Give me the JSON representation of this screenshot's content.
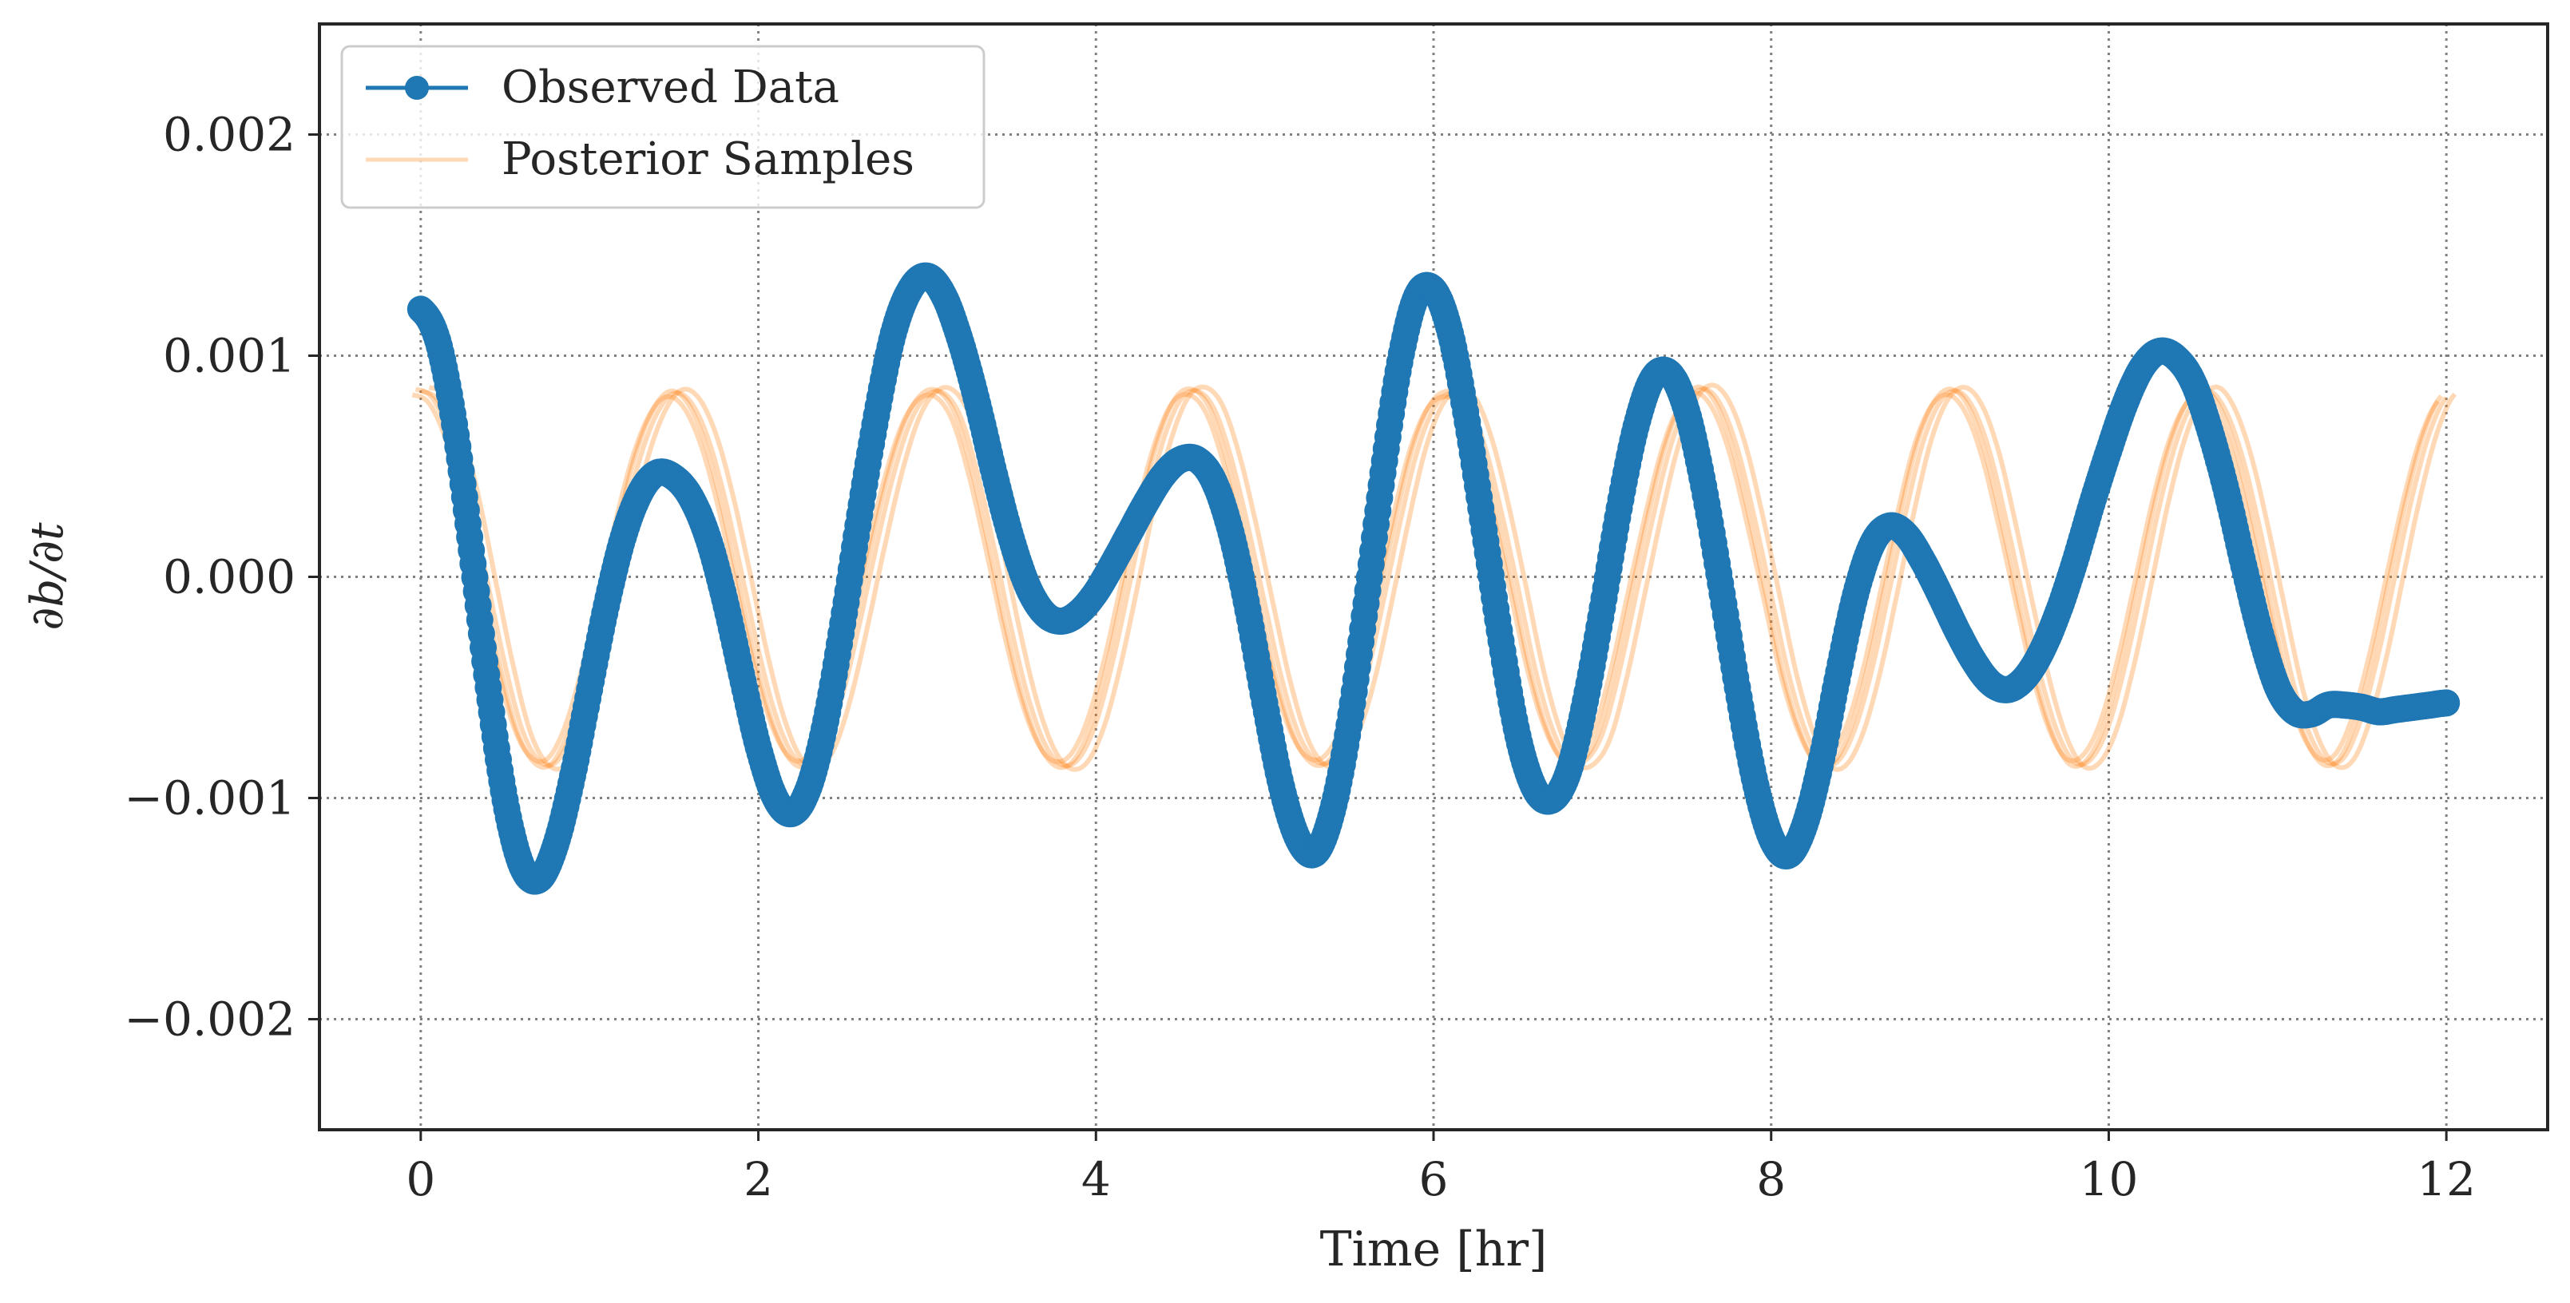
{
  "chart_data": {
    "type": "line",
    "title": "",
    "xlabel": "Time [hr]",
    "ylabel": "∂b/∂t",
    "xlim": [
      -0.6,
      12.6
    ],
    "ylim": [
      -0.0025,
      0.0025
    ],
    "xticks": [
      0,
      2,
      4,
      6,
      8,
      10,
      12
    ],
    "xtick_labels": [
      "0",
      "2",
      "4",
      "6",
      "8",
      "10",
      "12"
    ],
    "yticks": [
      -0.002,
      -0.001,
      0.0,
      0.001,
      0.002
    ],
    "ytick_labels": [
      "−0.002",
      "−0.001",
      "0.000",
      "0.001",
      "0.002"
    ],
    "grid": true,
    "legend_position": "top-left",
    "series": [
      {
        "name": "Observed Data",
        "color": "#1f77b4",
        "marker": "circle",
        "x": [
          0.0,
          0.1,
          0.2,
          0.3,
          0.4,
          0.5,
          0.6,
          0.7,
          0.8,
          0.9,
          1.0,
          1.1,
          1.2,
          1.3,
          1.4,
          1.5,
          1.6,
          1.7,
          1.8,
          1.9,
          2.0,
          2.1,
          2.2,
          2.3,
          2.4,
          2.5,
          2.6,
          2.7,
          2.8,
          2.9,
          3.0,
          3.1,
          3.2,
          3.3,
          3.4,
          3.5,
          3.6,
          3.7,
          3.8,
          3.9,
          4.0,
          4.1,
          4.2,
          4.3,
          4.4,
          4.5,
          4.6,
          4.7,
          4.8,
          4.9,
          5.0,
          5.1,
          5.2,
          5.3,
          5.4,
          5.5,
          5.6,
          5.7,
          5.8,
          5.9,
          6.0,
          6.1,
          6.2,
          6.3,
          6.4,
          6.5,
          6.6,
          6.7,
          6.8,
          6.9,
          7.0,
          7.1,
          7.2,
          7.3,
          7.4,
          7.5,
          7.6,
          7.7,
          7.8,
          7.9,
          8.0,
          8.1,
          8.2,
          8.3,
          8.4,
          8.5,
          8.6,
          8.7,
          8.8,
          8.9,
          9.0,
          9.1,
          9.2,
          9.3,
          9.4,
          9.5,
          9.6,
          9.7,
          9.8,
          9.9,
          10.0,
          10.1,
          10.2,
          10.3,
          10.4,
          10.5,
          10.6,
          10.7,
          10.8,
          10.9,
          11.0,
          11.1,
          11.2,
          11.3,
          11.4,
          11.5,
          11.6,
          11.7,
          11.8,
          11.9,
          12.0
        ],
        "y": [
          0.00121,
          0.00107,
          0.00069,
          0.00012,
          -0.0005,
          -0.00101,
          -0.00131,
          -0.00137,
          -0.00121,
          -0.0009,
          -0.00051,
          -0.00013,
          0.00018,
          0.00038,
          0.00047,
          0.00045,
          0.00036,
          0.00018,
          -0.0001,
          -0.00044,
          -0.00077,
          -0.001,
          -0.00107,
          -0.00095,
          -0.00065,
          -0.00021,
          0.00028,
          0.00073,
          0.0011,
          0.0013,
          0.00136,
          0.00127,
          0.00106,
          0.00078,
          0.00046,
          0.00017,
          -5e-05,
          -0.00017,
          -0.0002,
          -0.00016,
          -7e-05,
          6e-05,
          0.0002,
          0.00034,
          0.00046,
          0.00053,
          0.00053,
          0.00043,
          0.0002,
          -0.00015,
          -0.00057,
          -0.00095,
          -0.00119,
          -0.00125,
          -0.00106,
          -0.00067,
          -0.00012,
          0.00047,
          0.00097,
          0.00127,
          0.0013,
          0.0011,
          0.0007,
          0.00021,
          -0.00029,
          -0.00072,
          -0.00096,
          -0.00101,
          -0.00088,
          -0.00056,
          -0.00014,
          0.00031,
          0.00068,
          0.0009,
          0.00092,
          0.00075,
          0.00041,
          -3e-05,
          -0.0005,
          -0.00091,
          -0.00118,
          -0.00126,
          -0.00112,
          -0.00082,
          -0.00043,
          -8e-05,
          0.00015,
          0.00023,
          0.00019,
          7e-05,
          -8e-05,
          -0.00024,
          -0.00038,
          -0.00048,
          -0.00051,
          -0.00046,
          -0.00034,
          -0.00016,
          7e-05,
          0.00033,
          0.00057,
          0.00079,
          0.00095,
          0.00102,
          0.00099,
          0.00088,
          0.00066,
          0.00038,
          5e-05,
          -0.00026,
          -0.0005,
          -0.00061,
          -0.00062,
          -0.00058,
          -0.00058,
          -0.00059,
          -0.00061,
          -0.0006,
          -0.00059,
          -0.00058,
          -0.00057
        ]
      },
      {
        "name": "Posterior Samples",
        "color": "#ff7f0e",
        "x": [
          0.0,
          0.1,
          0.2,
          0.3,
          0.4,
          0.5,
          0.6,
          0.7,
          0.8,
          0.9,
          1.0,
          1.1,
          1.2,
          1.3,
          1.4,
          1.5,
          1.6,
          1.7,
          1.8,
          1.9,
          2.0,
          2.1,
          2.2,
          2.3,
          2.4,
          2.5,
          2.6,
          2.7,
          2.8,
          2.9,
          3.0,
          3.1,
          3.2,
          3.3,
          3.4,
          3.5,
          3.6,
          3.7,
          3.8,
          3.9,
          4.0,
          4.1,
          4.2,
          4.3,
          4.4,
          4.5,
          4.6,
          4.7,
          4.8,
          4.9,
          5.0,
          5.1,
          5.2,
          5.3,
          5.4,
          5.5,
          5.6,
          5.7,
          5.8,
          5.9,
          6.0,
          6.1,
          6.2,
          6.3,
          6.4,
          6.5,
          6.6,
          6.7,
          6.8,
          6.9,
          7.0,
          7.1,
          7.2,
          7.3,
          7.4,
          7.5,
          7.6,
          7.7,
          7.8,
          7.9,
          8.0,
          8.1,
          8.2,
          8.3,
          8.4,
          8.5,
          8.6,
          8.7,
          8.8,
          8.9,
          9.0,
          9.1,
          9.2,
          9.3,
          9.4,
          9.5,
          9.6,
          9.7,
          9.8,
          9.9,
          10.0,
          10.1,
          10.2,
          10.3,
          10.4,
          10.5,
          10.6,
          10.7,
          10.8,
          10.9,
          11.0,
          11.1,
          11.2,
          11.3,
          11.4,
          11.5,
          11.6,
          11.7,
          11.8,
          11.9,
          12.0
        ],
        "y": [
          0.00084,
          0.0008,
          0.00063,
          0.00033,
          -4e-05,
          -0.0004,
          -0.00069,
          -0.00083,
          -0.00084,
          -0.0007,
          -0.00044,
          -0.00011,
          0.00024,
          0.00054,
          0.00074,
          0.00083,
          0.00079,
          0.00063,
          0.00036,
          2e-05,
          -0.00033,
          -0.00062,
          -0.0008,
          -0.00085,
          -0.00076,
          -0.00053,
          -0.00021,
          0.00014,
          0.00046,
          0.0007,
          0.00082,
          0.00083,
          0.00072,
          0.00046,
          0.00012,
          -0.00024,
          -0.00055,
          -0.00076,
          -0.00085,
          -0.00082,
          -0.00066,
          -0.00038,
          -3e-05,
          0.00033,
          0.00062,
          0.0008,
          0.00084,
          0.00076,
          0.00054,
          0.00023,
          -0.00012,
          -0.00046,
          -0.00071,
          -0.00083,
          -0.00083,
          -0.0007,
          -0.00046,
          -0.00012,
          0.00024,
          0.00056,
          0.00076,
          0.00083,
          0.00079,
          0.0006,
          0.0003,
          -5e-05,
          -0.00041,
          -0.00068,
          -0.00083,
          -0.00083,
          -0.00071,
          -0.00043,
          -8e-05,
          0.00027,
          0.00058,
          0.00078,
          0.00085,
          0.00078,
          0.00058,
          0.00027,
          -8e-05,
          -0.00043,
          -0.00069,
          -0.00084,
          -0.00083,
          -0.00068,
          -0.00041,
          -6e-05,
          0.0003,
          0.00061,
          0.00079,
          0.00084,
          0.00076,
          0.00055,
          0.00023,
          -0.00012,
          -0.00046,
          -0.00071,
          -0.00084,
          -0.00082,
          -0.00067,
          -0.00039,
          -4e-05,
          0.00032,
          0.00061,
          0.00079,
          0.00084,
          0.00074,
          0.00052,
          0.0002,
          -0.00016,
          -0.0005,
          -0.00073,
          -0.00084,
          -0.00081,
          -0.00063,
          -0.00034,
          2e-05,
          0.00037,
          0.00065,
          0.00081
        ]
      }
    ]
  }
}
